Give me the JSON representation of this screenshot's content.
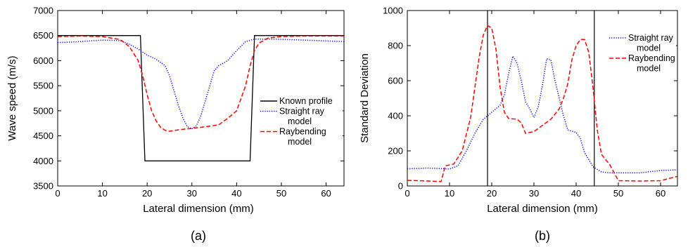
{
  "chart_data": [
    {
      "type": "line",
      "panel_label": "(a)",
      "xlabel": "Lateral dimension (mm)",
      "ylabel": "Wave speed (m/s)",
      "xlim": [
        0,
        64
      ],
      "ylim": [
        3500,
        7000
      ],
      "xticks": [
        0,
        10,
        20,
        30,
        40,
        50,
        60
      ],
      "yticks": [
        3500,
        4000,
        4500,
        5000,
        5500,
        6000,
        6500,
        7000
      ],
      "grid": false,
      "legend_position": "right",
      "series": [
        {
          "name": "Known profile",
          "color": "#000000",
          "style": "solid",
          "points": [
            [
              0,
              6500
            ],
            [
              18.5,
              6500
            ],
            [
              19.5,
              4000
            ],
            [
              43,
              4000
            ],
            [
              44,
              6500
            ],
            [
              64,
              6500
            ]
          ]
        },
        {
          "name": "Straight ray\nmodel",
          "color": "#0000ff",
          "style": "dotted",
          "points": [
            [
              0,
              6360
            ],
            [
              5,
              6380
            ],
            [
              10,
              6410
            ],
            [
              14,
              6400
            ],
            [
              16,
              6330
            ],
            [
              18,
              6230
            ],
            [
              20,
              6110
            ],
            [
              22,
              6030
            ],
            [
              24,
              5900
            ],
            [
              25,
              5700
            ],
            [
              26,
              5400
            ],
            [
              27,
              5100
            ],
            [
              28,
              4850
            ],
            [
              29,
              4680
            ],
            [
              30,
              4640
            ],
            [
              31,
              4700
            ],
            [
              32,
              4900
            ],
            [
              33,
              5200
            ],
            [
              34,
              5500
            ],
            [
              35,
              5800
            ],
            [
              36,
              5900
            ],
            [
              38,
              6000
            ],
            [
              40,
              6200
            ],
            [
              42,
              6380
            ],
            [
              44,
              6430
            ],
            [
              48,
              6430
            ],
            [
              55,
              6410
            ],
            [
              64,
              6380
            ]
          ]
        },
        {
          "name": "Raybending\nmodel",
          "color": "#ff0000",
          "style": "dashed",
          "points": [
            [
              0,
              6480
            ],
            [
              5,
              6490
            ],
            [
              10,
              6480
            ],
            [
              14,
              6420
            ],
            [
              16,
              6280
            ],
            [
              18,
              6000
            ],
            [
              19,
              5700
            ],
            [
              20,
              5320
            ],
            [
              21,
              5000
            ],
            [
              22,
              4800
            ],
            [
              23,
              4670
            ],
            [
              24,
              4610
            ],
            [
              25,
              4590
            ],
            [
              27,
              4620
            ],
            [
              30,
              4650
            ],
            [
              33,
              4680
            ],
            [
              36,
              4720
            ],
            [
              38,
              4850
            ],
            [
              40,
              5000
            ],
            [
              42,
              5500
            ],
            [
              43,
              5900
            ],
            [
              44,
              6200
            ],
            [
              45,
              6350
            ],
            [
              47,
              6450
            ],
            [
              50,
              6480
            ],
            [
              55,
              6490
            ],
            [
              64,
              6490
            ]
          ]
        }
      ]
    },
    {
      "type": "line",
      "panel_label": "(b)",
      "xlabel": "Lateral dimension (mm)",
      "ylabel": "Standard Deviation",
      "xlim": [
        0,
        64
      ],
      "ylim": [
        0,
        1000
      ],
      "xticks": [
        0,
        10,
        20,
        30,
        40,
        50,
        60
      ],
      "yticks": [
        0,
        200,
        400,
        600,
        800,
        1000
      ],
      "grid": false,
      "legend_position": "top-right",
      "vertical_lines_x": [
        19,
        44.3
      ],
      "series": [
        {
          "name": "Straight ray\nmodel",
          "color": "#0000ff",
          "style": "dotted",
          "points": [
            [
              0,
              98
            ],
            [
              5,
              102
            ],
            [
              10,
              97
            ],
            [
              12,
              115
            ],
            [
              14,
              200
            ],
            [
              16,
              300
            ],
            [
              18,
              380
            ],
            [
              20,
              420
            ],
            [
              22,
              460
            ],
            [
              23,
              520
            ],
            [
              24,
              640
            ],
            [
              25,
              740
            ],
            [
              26,
              700
            ],
            [
              27,
              600
            ],
            [
              28,
              480
            ],
            [
              29,
              440
            ],
            [
              30,
              390
            ],
            [
              31,
              450
            ],
            [
              32,
              570
            ],
            [
              33,
              725
            ],
            [
              34,
              720
            ],
            [
              35,
              600
            ],
            [
              36,
              500
            ],
            [
              37,
              400
            ],
            [
              38,
              320
            ],
            [
              40,
              305
            ],
            [
              41,
              270
            ],
            [
              42,
              190
            ],
            [
              44,
              110
            ],
            [
              46,
              80
            ],
            [
              48,
              75
            ],
            [
              55,
              75
            ],
            [
              60,
              88
            ],
            [
              64,
              92
            ]
          ]
        },
        {
          "name": "Raybending\nmodel",
          "color": "#ff0000",
          "style": "dashed",
          "points": [
            [
              0,
              32
            ],
            [
              5,
              28
            ],
            [
              8,
              25
            ],
            [
              9,
              115
            ],
            [
              11,
              125
            ],
            [
              13,
              200
            ],
            [
              15,
              390
            ],
            [
              16,
              560
            ],
            [
              17,
              730
            ],
            [
              18,
              860
            ],
            [
              19,
              915
            ],
            [
              20,
              900
            ],
            [
              21,
              780
            ],
            [
              22,
              560
            ],
            [
              23,
              420
            ],
            [
              24,
              385
            ],
            [
              26,
              380
            ],
            [
              27,
              360
            ],
            [
              28,
              300
            ],
            [
              30,
              310
            ],
            [
              32,
              345
            ],
            [
              34,
              380
            ],
            [
              36,
              440
            ],
            [
              37,
              500
            ],
            [
              38,
              580
            ],
            [
              39,
              720
            ],
            [
              40,
              800
            ],
            [
              41,
              835
            ],
            [
              42,
              835
            ],
            [
              43,
              760
            ],
            [
              44,
              560
            ],
            [
              45,
              320
            ],
            [
              46,
              180
            ],
            [
              48,
              120
            ],
            [
              50,
              30
            ],
            [
              55,
              28
            ],
            [
              60,
              30
            ],
            [
              64,
              55
            ]
          ]
        }
      ]
    }
  ]
}
